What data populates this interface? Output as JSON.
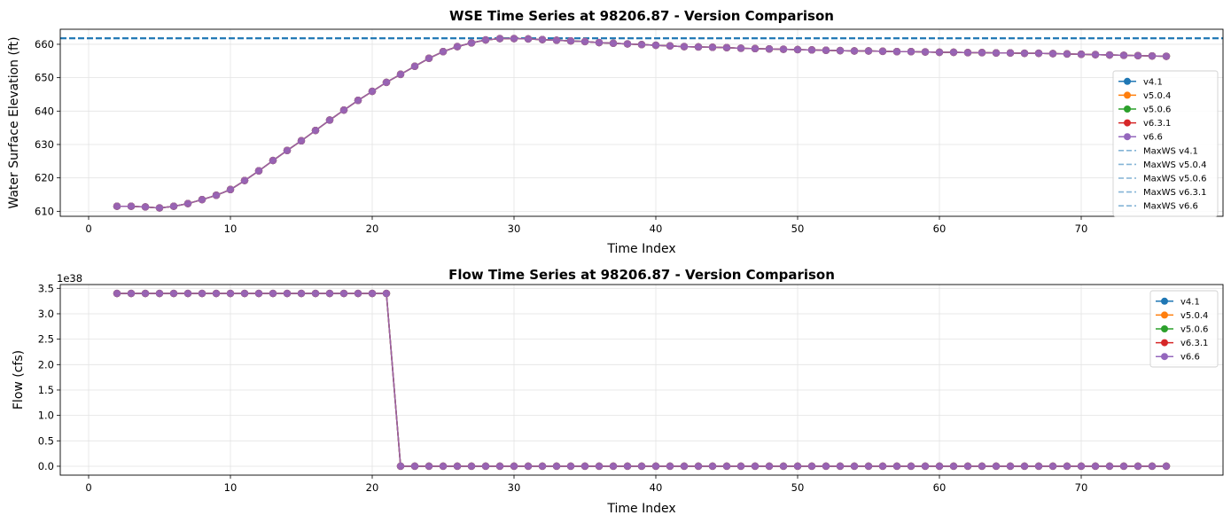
{
  "colors": {
    "v4.1": "#1f77b4",
    "v5.0.4": "#ff7f0e",
    "v5.0.6": "#2ca02c",
    "v6.3.1": "#d62728",
    "v6.6": "#9467bd",
    "maxws": "#1f77b4"
  },
  "chart_data": [
    {
      "type": "line",
      "title": "WSE Time Series at 98206.87 - Version Comparison",
      "xlabel": "Time Index",
      "ylabel": "Water Surface Elevation (ft)",
      "xlim": [
        -2,
        80
      ],
      "ylim": [
        608.5,
        664.5
      ],
      "xticks": [
        0,
        10,
        20,
        30,
        40,
        50,
        60,
        70
      ],
      "yticks": [
        610,
        620,
        630,
        640,
        650,
        660
      ],
      "grid": true,
      "legend_position": "center-right",
      "x": [
        2,
        3,
        4,
        5,
        6,
        7,
        8,
        9,
        10,
        11,
        12,
        13,
        14,
        15,
        16,
        17,
        18,
        19,
        20,
        21,
        22,
        23,
        24,
        25,
        26,
        27,
        28,
        29,
        30,
        31,
        32,
        33,
        34,
        35,
        36,
        37,
        38,
        39,
        40,
        41,
        42,
        43,
        44,
        45,
        46,
        47,
        48,
        49,
        50,
        51,
        52,
        53,
        54,
        55,
        56,
        57,
        58,
        59,
        60,
        61,
        62,
        63,
        64,
        65,
        66,
        67,
        68,
        69,
        70,
        71,
        72,
        73,
        74,
        75,
        76
      ],
      "series": [
        {
          "name": "v4.1",
          "values": [
            611.5,
            611.5,
            611.3,
            611.0,
            611.5,
            612.3,
            613.5,
            614.8,
            616.5,
            619.2,
            622.1,
            625.2,
            628.2,
            631.1,
            634.2,
            637.3,
            640.3,
            643.2,
            645.9,
            648.6,
            651.0,
            653.4,
            655.8,
            657.8,
            659.3,
            660.4,
            661.3,
            661.7,
            661.7,
            661.6,
            661.4,
            661.2,
            661.0,
            660.8,
            660.5,
            660.3,
            660.1,
            659.9,
            659.7,
            659.5,
            659.3,
            659.2,
            659.1,
            659.0,
            658.8,
            658.7,
            658.6,
            658.5,
            658.4,
            658.3,
            658.2,
            658.1,
            658.0,
            658.0,
            657.9,
            657.8,
            657.8,
            657.7,
            657.6,
            657.6,
            657.5,
            657.5,
            657.4,
            657.4,
            657.3,
            657.3,
            657.2,
            657.1,
            657.0,
            656.9,
            656.8,
            656.7,
            656.6,
            656.5,
            656.4
          ]
        },
        {
          "name": "v5.0.4",
          "values": [
            611.5,
            611.5,
            611.3,
            611.0,
            611.5,
            612.3,
            613.5,
            614.8,
            616.5,
            619.2,
            622.1,
            625.2,
            628.2,
            631.1,
            634.2,
            637.3,
            640.3,
            643.2,
            645.9,
            648.6,
            651.0,
            653.4,
            655.8,
            657.8,
            659.3,
            660.4,
            661.3,
            661.7,
            661.7,
            661.6,
            661.4,
            661.2,
            661.0,
            660.8,
            660.5,
            660.3,
            660.1,
            659.9,
            659.7,
            659.5,
            659.3,
            659.2,
            659.1,
            659.0,
            658.8,
            658.7,
            658.6,
            658.5,
            658.4,
            658.3,
            658.2,
            658.1,
            658.0,
            658.0,
            657.9,
            657.8,
            657.8,
            657.7,
            657.6,
            657.6,
            657.5,
            657.5,
            657.4,
            657.4,
            657.3,
            657.3,
            657.2,
            657.1,
            657.0,
            656.9,
            656.8,
            656.7,
            656.6,
            656.5,
            656.4
          ]
        },
        {
          "name": "v5.0.6",
          "values": [
            611.5,
            611.5,
            611.3,
            611.0,
            611.5,
            612.3,
            613.5,
            614.8,
            616.5,
            619.2,
            622.1,
            625.2,
            628.2,
            631.1,
            634.2,
            637.3,
            640.3,
            643.2,
            645.9,
            648.6,
            651.0,
            653.4,
            655.8,
            657.8,
            659.3,
            660.4,
            661.3,
            661.7,
            661.7,
            661.6,
            661.4,
            661.2,
            661.0,
            660.8,
            660.5,
            660.3,
            660.1,
            659.9,
            659.7,
            659.5,
            659.3,
            659.2,
            659.1,
            659.0,
            658.8,
            658.7,
            658.6,
            658.5,
            658.4,
            658.3,
            658.2,
            658.1,
            658.0,
            658.0,
            657.9,
            657.8,
            657.8,
            657.7,
            657.6,
            657.6,
            657.5,
            657.5,
            657.4,
            657.4,
            657.3,
            657.3,
            657.2,
            657.1,
            657.0,
            656.9,
            656.8,
            656.7,
            656.6,
            656.5,
            656.4
          ]
        },
        {
          "name": "v6.3.1",
          "values": [
            611.5,
            611.5,
            611.3,
            611.0,
            611.5,
            612.3,
            613.5,
            614.8,
            616.5,
            619.2,
            622.1,
            625.2,
            628.2,
            631.1,
            634.2,
            637.3,
            640.3,
            643.2,
            645.9,
            648.6,
            651.0,
            653.4,
            655.8,
            657.8,
            659.3,
            660.4,
            661.3,
            661.7,
            661.7,
            661.6,
            661.4,
            661.2,
            661.0,
            660.8,
            660.5,
            660.3,
            660.1,
            659.9,
            659.7,
            659.5,
            659.3,
            659.2,
            659.1,
            659.0,
            658.8,
            658.7,
            658.6,
            658.5,
            658.4,
            658.3,
            658.2,
            658.1,
            658.0,
            658.0,
            657.9,
            657.8,
            657.8,
            657.7,
            657.6,
            657.6,
            657.5,
            657.5,
            657.4,
            657.4,
            657.3,
            657.3,
            657.2,
            657.1,
            657.0,
            656.9,
            656.8,
            656.7,
            656.6,
            656.5,
            656.4
          ]
        },
        {
          "name": "v6.6",
          "values": [
            611.5,
            611.5,
            611.3,
            611.0,
            611.5,
            612.3,
            613.5,
            614.8,
            616.5,
            619.2,
            622.1,
            625.2,
            628.2,
            631.1,
            634.2,
            637.3,
            640.3,
            643.2,
            645.9,
            648.6,
            651.0,
            653.4,
            655.8,
            657.8,
            659.3,
            660.4,
            661.3,
            661.7,
            661.7,
            661.6,
            661.4,
            661.2,
            661.0,
            660.8,
            660.5,
            660.3,
            660.1,
            659.9,
            659.7,
            659.5,
            659.3,
            659.2,
            659.1,
            659.0,
            658.8,
            658.7,
            658.6,
            658.5,
            658.4,
            658.3,
            658.2,
            658.1,
            658.0,
            658.0,
            657.9,
            657.8,
            657.8,
            657.7,
            657.6,
            657.6,
            657.5,
            657.5,
            657.4,
            657.4,
            657.3,
            657.3,
            657.2,
            657.1,
            657.0,
            656.9,
            656.8,
            656.7,
            656.6,
            656.5,
            656.4
          ]
        }
      ],
      "hlines": [
        {
          "name": "MaxWS v4.1",
          "value": 661.8
        },
        {
          "name": "MaxWS v5.0.4",
          "value": 661.8
        },
        {
          "name": "MaxWS v5.0.6",
          "value": 661.8
        },
        {
          "name": "MaxWS v6.3.1",
          "value": 661.8
        },
        {
          "name": "MaxWS v6.6",
          "value": 661.8
        }
      ],
      "legend": [
        "v4.1",
        "v5.0.4",
        "v5.0.6",
        "v6.3.1",
        "v6.6",
        "MaxWS v4.1",
        "MaxWS v5.0.4",
        "MaxWS v5.0.6",
        "MaxWS v6.3.1",
        "MaxWS v6.6"
      ]
    },
    {
      "type": "line",
      "title": "Flow Time Series at 98206.87 - Version Comparison",
      "xlabel": "Time Index",
      "ylabel": "Flow (cfs)",
      "offset_text": "1e38",
      "xlim": [
        -2,
        80
      ],
      "ylim": [
        -0.175,
        3.575
      ],
      "xticks": [
        0,
        10,
        20,
        30,
        40,
        50,
        60,
        70
      ],
      "yticks": [
        0.0,
        0.5,
        1.0,
        1.5,
        2.0,
        2.5,
        3.0,
        3.5
      ],
      "ytick_labels": [
        "0.0",
        "0.5",
        "1.0",
        "1.5",
        "2.0",
        "2.5",
        "3.0",
        "3.5"
      ],
      "grid": true,
      "legend_position": "top-right",
      "x": [
        2,
        3,
        4,
        5,
        6,
        7,
        8,
        9,
        10,
        11,
        12,
        13,
        14,
        15,
        16,
        17,
        18,
        19,
        20,
        21,
        22,
        23,
        24,
        25,
        26,
        27,
        28,
        29,
        30,
        31,
        32,
        33,
        34,
        35,
        36,
        37,
        38,
        39,
        40,
        41,
        42,
        43,
        44,
        45,
        46,
        47,
        48,
        49,
        50,
        51,
        52,
        53,
        54,
        55,
        56,
        57,
        58,
        59,
        60,
        61,
        62,
        63,
        64,
        65,
        66,
        67,
        68,
        69,
        70,
        71,
        72,
        73,
        74,
        75,
        76
      ],
      "series": [
        {
          "name": "v4.1",
          "values": [
            3.4,
            3.4,
            3.4,
            3.4,
            3.4,
            3.4,
            3.4,
            3.4,
            3.4,
            3.4,
            3.4,
            3.4,
            3.4,
            3.4,
            3.4,
            3.4,
            3.4,
            3.4,
            3.4,
            3.4,
            0,
            0,
            0,
            0,
            0,
            0,
            0,
            0,
            0,
            0,
            0,
            0,
            0,
            0,
            0,
            0,
            0,
            0,
            0,
            0,
            0,
            0,
            0,
            0,
            0,
            0,
            0,
            0,
            0,
            0,
            0,
            0,
            0,
            0,
            0,
            0,
            0,
            0,
            0,
            0,
            0,
            0,
            0,
            0,
            0,
            0,
            0,
            0,
            0,
            0,
            0,
            0,
            0,
            0,
            0
          ]
        },
        {
          "name": "v5.0.4",
          "values": [
            3.4,
            3.4,
            3.4,
            3.4,
            3.4,
            3.4,
            3.4,
            3.4,
            3.4,
            3.4,
            3.4,
            3.4,
            3.4,
            3.4,
            3.4,
            3.4,
            3.4,
            3.4,
            3.4,
            3.4,
            0,
            0,
            0,
            0,
            0,
            0,
            0,
            0,
            0,
            0,
            0,
            0,
            0,
            0,
            0,
            0,
            0,
            0,
            0,
            0,
            0,
            0,
            0,
            0,
            0,
            0,
            0,
            0,
            0,
            0,
            0,
            0,
            0,
            0,
            0,
            0,
            0,
            0,
            0,
            0,
            0,
            0,
            0,
            0,
            0,
            0,
            0,
            0,
            0,
            0,
            0,
            0,
            0,
            0,
            0
          ]
        },
        {
          "name": "v5.0.6",
          "values": [
            3.4,
            3.4,
            3.4,
            3.4,
            3.4,
            3.4,
            3.4,
            3.4,
            3.4,
            3.4,
            3.4,
            3.4,
            3.4,
            3.4,
            3.4,
            3.4,
            3.4,
            3.4,
            3.4,
            3.4,
            0,
            0,
            0,
            0,
            0,
            0,
            0,
            0,
            0,
            0,
            0,
            0,
            0,
            0,
            0,
            0,
            0,
            0,
            0,
            0,
            0,
            0,
            0,
            0,
            0,
            0,
            0,
            0,
            0,
            0,
            0,
            0,
            0,
            0,
            0,
            0,
            0,
            0,
            0,
            0,
            0,
            0,
            0,
            0,
            0,
            0,
            0,
            0,
            0,
            0,
            0,
            0,
            0,
            0,
            0
          ]
        },
        {
          "name": "v6.3.1",
          "values": [
            3.4,
            3.4,
            3.4,
            3.4,
            3.4,
            3.4,
            3.4,
            3.4,
            3.4,
            3.4,
            3.4,
            3.4,
            3.4,
            3.4,
            3.4,
            3.4,
            3.4,
            3.4,
            3.4,
            3.4,
            0,
            0,
            0,
            0,
            0,
            0,
            0,
            0,
            0,
            0,
            0,
            0,
            0,
            0,
            0,
            0,
            0,
            0,
            0,
            0,
            0,
            0,
            0,
            0,
            0,
            0,
            0,
            0,
            0,
            0,
            0,
            0,
            0,
            0,
            0,
            0,
            0,
            0,
            0,
            0,
            0,
            0,
            0,
            0,
            0,
            0,
            0,
            0,
            0,
            0,
            0,
            0,
            0,
            0,
            0
          ]
        },
        {
          "name": "v6.6",
          "values": [
            3.4,
            3.4,
            3.4,
            3.4,
            3.4,
            3.4,
            3.4,
            3.4,
            3.4,
            3.4,
            3.4,
            3.4,
            3.4,
            3.4,
            3.4,
            3.4,
            3.4,
            3.4,
            3.4,
            3.4,
            0,
            0,
            0,
            0,
            0,
            0,
            0,
            0,
            0,
            0,
            0,
            0,
            0,
            0,
            0,
            0,
            0,
            0,
            0,
            0,
            0,
            0,
            0,
            0,
            0,
            0,
            0,
            0,
            0,
            0,
            0,
            0,
            0,
            0,
            0,
            0,
            0,
            0,
            0,
            0,
            0,
            0,
            0,
            0,
            0,
            0,
            0,
            0,
            0,
            0,
            0,
            0,
            0,
            0,
            0
          ]
        }
      ],
      "legend": [
        "v4.1",
        "v5.0.4",
        "v5.0.6",
        "v6.3.1",
        "v6.6"
      ]
    }
  ]
}
